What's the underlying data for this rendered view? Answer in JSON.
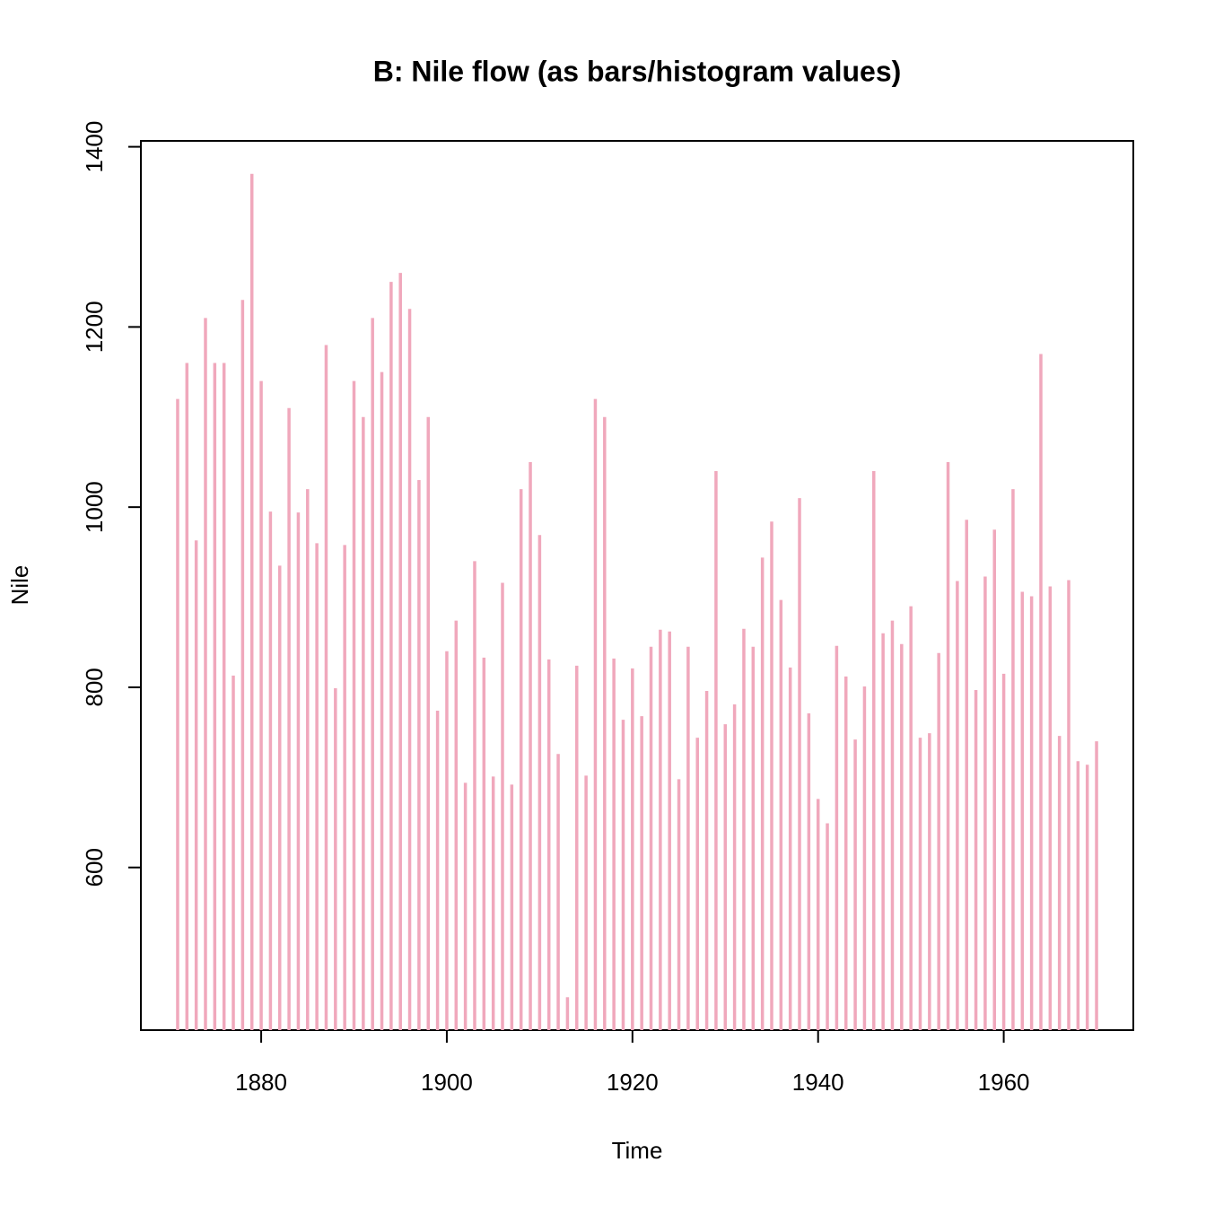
{
  "chart_data": {
    "type": "bar",
    "title": "B: Nile flow (as bars/histogram values)",
    "x_label": "Time",
    "y_label": "Nile",
    "color": "#f0a8bc",
    "x": [
      1871,
      1872,
      1873,
      1874,
      1875,
      1876,
      1877,
      1878,
      1879,
      1880,
      1881,
      1882,
      1883,
      1884,
      1885,
      1886,
      1887,
      1888,
      1889,
      1890,
      1891,
      1892,
      1893,
      1894,
      1895,
      1896,
      1897,
      1898,
      1899,
      1900,
      1901,
      1902,
      1903,
      1904,
      1905,
      1906,
      1907,
      1908,
      1909,
      1910,
      1911,
      1912,
      1913,
      1914,
      1915,
      1916,
      1917,
      1918,
      1919,
      1920,
      1921,
      1922,
      1923,
      1924,
      1925,
      1926,
      1927,
      1928,
      1929,
      1930,
      1931,
      1932,
      1933,
      1934,
      1935,
      1936,
      1937,
      1938,
      1939,
      1940,
      1941,
      1942,
      1943,
      1944,
      1945,
      1946,
      1947,
      1948,
      1949,
      1950,
      1951,
      1952,
      1953,
      1954,
      1955,
      1956,
      1957,
      1958,
      1959,
      1960,
      1961,
      1962,
      1963,
      1964,
      1965,
      1966,
      1967,
      1968,
      1969,
      1970
    ],
    "values": [
      1120,
      1160,
      963,
      1210,
      1160,
      1160,
      813,
      1230,
      1370,
      1140,
      995,
      935,
      1110,
      994,
      1020,
      960,
      1180,
      799,
      958,
      1140,
      1100,
      1210,
      1150,
      1250,
      1260,
      1220,
      1030,
      1100,
      774,
      840,
      874,
      694,
      940,
      833,
      701,
      916,
      692,
      1020,
      1050,
      969,
      831,
      726,
      456,
      824,
      702,
      1120,
      1100,
      832,
      764,
      821,
      768,
      845,
      864,
      862,
      698,
      845,
      744,
      796,
      1040,
      759,
      781,
      865,
      845,
      944,
      984,
      897,
      822,
      1010,
      771,
      676,
      649,
      846,
      812,
      742,
      801,
      1040,
      860,
      874,
      848,
      890,
      744,
      749,
      838,
      1050,
      918,
      986,
      797,
      923,
      975,
      815,
      1020,
      906,
      901,
      1170,
      912,
      746,
      919,
      718,
      714,
      740
    ],
    "xlim": [
      1867.04,
      1973.96
    ],
    "ylim": [
      419.44,
      1406.56
    ],
    "xticks": [
      1880,
      1900,
      1920,
      1940,
      1960
    ],
    "yticks": [
      600,
      800,
      1000,
      1200,
      1400
    ],
    "grid": false
  }
}
